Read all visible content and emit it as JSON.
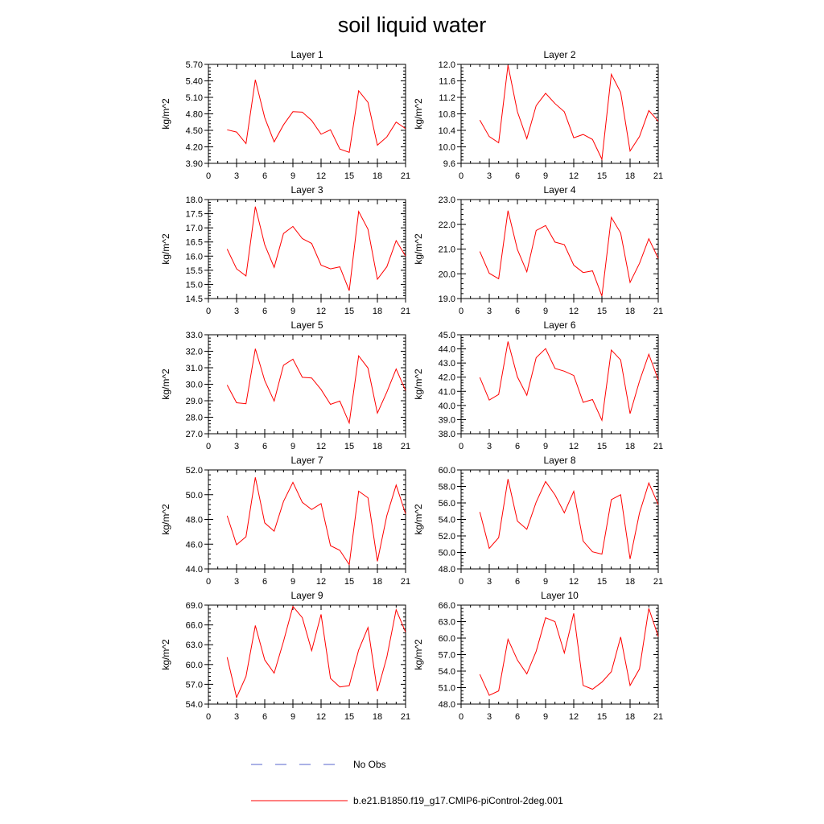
{
  "page": {
    "title": "soil liquid water"
  },
  "chart_data": [
    {
      "type": "line",
      "title": "Layer 1",
      "ylabel": "kg/m^2",
      "xlim": [
        0,
        21
      ],
      "xticks": [
        "0",
        "3",
        "6",
        "9",
        "12",
        "15",
        "18",
        "21"
      ],
      "ylim": [
        3.9,
        5.7
      ],
      "yticks": [
        "3.90",
        "4.20",
        "4.50",
        "4.80",
        "5.10",
        "5.40",
        "5.70"
      ],
      "x": [
        2,
        3,
        4,
        5,
        6,
        7,
        8,
        9,
        10,
        11,
        12,
        13,
        14,
        15,
        16,
        17,
        18,
        19,
        20,
        21
      ],
      "series": [
        {
          "name": "b.e21.B1850.f19_g17.CMIP6-piControl-2deg.001",
          "color": "#ff0000",
          "values": [
            4.51,
            4.47,
            4.26,
            5.42,
            4.73,
            4.29,
            4.6,
            4.84,
            4.83,
            4.68,
            4.43,
            4.51,
            4.16,
            4.1,
            5.22,
            5.01,
            4.23,
            4.38,
            4.65,
            4.53
          ]
        }
      ]
    },
    {
      "type": "line",
      "title": "Layer 2",
      "ylabel": "kg/m^2",
      "xlim": [
        0,
        21
      ],
      "xticks": [
        "0",
        "3",
        "6",
        "9",
        "12",
        "15",
        "18",
        "21"
      ],
      "ylim": [
        9.6,
        12.0
      ],
      "yticks": [
        "9.6",
        "10.0",
        "10.4",
        "10.8",
        "11.2",
        "11.6",
        "12.0"
      ],
      "x": [
        2,
        3,
        4,
        5,
        6,
        7,
        8,
        9,
        10,
        11,
        12,
        13,
        14,
        15,
        16,
        17,
        18,
        19,
        20,
        21
      ],
      "series": [
        {
          "name": "b.e21.B1850.f19_g17.CMIP6-piControl-2deg.001",
          "color": "#ff0000",
          "values": [
            10.65,
            10.25,
            10.1,
            11.98,
            10.85,
            10.2,
            11.0,
            11.3,
            11.05,
            10.85,
            10.22,
            10.3,
            10.18,
            9.7,
            11.76,
            11.32,
            9.9,
            10.25,
            10.88,
            10.62
          ]
        }
      ]
    },
    {
      "type": "line",
      "title": "Layer 3",
      "ylabel": "kg/m^2",
      "xlim": [
        0,
        21
      ],
      "xticks": [
        "0",
        "3",
        "6",
        "9",
        "12",
        "15",
        "18",
        "21"
      ],
      "ylim": [
        14.5,
        18.0
      ],
      "yticks": [
        "14.5",
        "15.0",
        "15.5",
        "16.0",
        "16.5",
        "17.0",
        "17.5",
        "18.0"
      ],
      "x": [
        2,
        3,
        4,
        5,
        6,
        7,
        8,
        9,
        10,
        11,
        12,
        13,
        14,
        15,
        16,
        17,
        18,
        19,
        20,
        21
      ],
      "series": [
        {
          "name": "b.e21.B1850.f19_g17.CMIP6-piControl-2deg.001",
          "color": "#ff0000",
          "values": [
            16.25,
            15.55,
            15.3,
            17.75,
            16.4,
            15.6,
            16.8,
            17.05,
            16.62,
            16.45,
            15.68,
            15.55,
            15.62,
            14.78,
            17.58,
            16.95,
            15.18,
            15.62,
            16.55,
            16.0
          ]
        }
      ]
    },
    {
      "type": "line",
      "title": "Layer 4",
      "ylabel": "kg/m^2",
      "xlim": [
        0,
        21
      ],
      "xticks": [
        "0",
        "3",
        "6",
        "9",
        "12",
        "15",
        "18",
        "21"
      ],
      "ylim": [
        19.0,
        23.0
      ],
      "yticks": [
        "19.0",
        "20.0",
        "21.0",
        "22.0",
        "23.0"
      ],
      "x": [
        2,
        3,
        4,
        5,
        6,
        7,
        8,
        9,
        10,
        11,
        12,
        13,
        14,
        15,
        16,
        17,
        18,
        19,
        20,
        21
      ],
      "series": [
        {
          "name": "b.e21.B1850.f19_g17.CMIP6-piControl-2deg.001",
          "color": "#ff0000",
          "values": [
            20.9,
            20.02,
            19.8,
            22.55,
            20.98,
            20.08,
            21.75,
            21.95,
            21.28,
            21.18,
            20.35,
            20.05,
            20.12,
            19.1,
            22.28,
            21.65,
            19.65,
            20.42,
            21.42,
            20.62
          ]
        }
      ]
    },
    {
      "type": "line",
      "title": "Layer 5",
      "ylabel": "kg/m^2",
      "xlim": [
        0,
        21
      ],
      "xticks": [
        "0",
        "3",
        "6",
        "9",
        "12",
        "15",
        "18",
        "21"
      ],
      "ylim": [
        27.0,
        33.0
      ],
      "yticks": [
        "27.0",
        "28.0",
        "29.0",
        "30.0",
        "31.0",
        "32.0",
        "33.0"
      ],
      "x": [
        2,
        3,
        4,
        5,
        6,
        7,
        8,
        9,
        10,
        11,
        12,
        13,
        14,
        15,
        16,
        17,
        18,
        19,
        20,
        21
      ],
      "series": [
        {
          "name": "b.e21.B1850.f19_g17.CMIP6-piControl-2deg.001",
          "color": "#ff0000",
          "values": [
            29.95,
            28.88,
            28.82,
            32.15,
            30.22,
            28.98,
            31.15,
            31.52,
            30.42,
            30.38,
            29.68,
            28.78,
            28.98,
            27.65,
            31.72,
            30.98,
            28.25,
            29.52,
            30.92,
            29.62
          ]
        }
      ]
    },
    {
      "type": "line",
      "title": "Layer 6",
      "ylabel": "kg/m^2",
      "xlim": [
        0,
        21
      ],
      "xticks": [
        "0",
        "3",
        "6",
        "9",
        "12",
        "15",
        "18",
        "21"
      ],
      "ylim": [
        38.0,
        45.0
      ],
      "yticks": [
        "38.0",
        "39.0",
        "40.0",
        "41.0",
        "42.0",
        "43.0",
        "44.0",
        "45.0"
      ],
      "x": [
        2,
        3,
        4,
        5,
        6,
        7,
        8,
        9,
        10,
        11,
        12,
        13,
        14,
        15,
        16,
        17,
        18,
        19,
        20,
        21
      ],
      "series": [
        {
          "name": "b.e21.B1850.f19_g17.CMIP6-piControl-2deg.001",
          "color": "#ff0000",
          "values": [
            41.98,
            40.38,
            40.78,
            44.52,
            42.02,
            40.72,
            43.38,
            44.02,
            42.62,
            42.42,
            42.12,
            40.22,
            40.42,
            38.95,
            43.92,
            43.22,
            39.42,
            41.72,
            43.62,
            41.82
          ]
        }
      ]
    },
    {
      "type": "line",
      "title": "Layer 7",
      "ylabel": "kg/m^2",
      "xlim": [
        0,
        21
      ],
      "xticks": [
        "0",
        "3",
        "6",
        "9",
        "12",
        "15",
        "18",
        "21"
      ],
      "ylim": [
        44.0,
        52.0
      ],
      "yticks": [
        "44.0",
        "46.0",
        "48.0",
        "50.0",
        "52.0"
      ],
      "x": [
        2,
        3,
        4,
        5,
        6,
        7,
        8,
        9,
        10,
        11,
        12,
        13,
        14,
        15,
        16,
        17,
        18,
        19,
        20,
        21
      ],
      "series": [
        {
          "name": "b.e21.B1850.f19_g17.CMIP6-piControl-2deg.001",
          "color": "#ff0000",
          "values": [
            48.3,
            45.95,
            46.6,
            51.4,
            47.72,
            47.05,
            49.45,
            51.0,
            49.38,
            48.8,
            49.28,
            45.88,
            45.5,
            44.35,
            50.28,
            49.75,
            44.62,
            48.3,
            50.78,
            48.45
          ]
        }
      ]
    },
    {
      "type": "line",
      "title": "Layer 8",
      "ylabel": "kg/m^2",
      "xlim": [
        0,
        21
      ],
      "xticks": [
        "0",
        "3",
        "6",
        "9",
        "12",
        "15",
        "18",
        "21"
      ],
      "ylim": [
        48.0,
        60.0
      ],
      "yticks": [
        "48.0",
        "50.0",
        "52.0",
        "54.0",
        "56.0",
        "58.0",
        "60.0"
      ],
      "x": [
        2,
        3,
        4,
        5,
        6,
        7,
        8,
        9,
        10,
        11,
        12,
        13,
        14,
        15,
        16,
        17,
        18,
        19,
        20,
        21
      ],
      "series": [
        {
          "name": "b.e21.B1850.f19_g17.CMIP6-piControl-2deg.001",
          "color": "#ff0000",
          "values": [
            54.9,
            50.5,
            51.8,
            58.9,
            53.8,
            52.8,
            56.1,
            58.6,
            56.98,
            54.8,
            57.4,
            51.38,
            50.08,
            49.8,
            56.4,
            57.0,
            49.2,
            54.78,
            58.42,
            55.8
          ]
        }
      ]
    },
    {
      "type": "line",
      "title": "Layer 9",
      "ylabel": "kg/m^2",
      "xlim": [
        0,
        21
      ],
      "xticks": [
        "0",
        "3",
        "6",
        "9",
        "12",
        "15",
        "18",
        "21"
      ],
      "ylim": [
        54.0,
        69.0
      ],
      "yticks": [
        "54.0",
        "57.0",
        "60.0",
        "63.0",
        "66.0",
        "69.0"
      ],
      "x": [
        2,
        3,
        4,
        5,
        6,
        7,
        8,
        9,
        10,
        11,
        12,
        13,
        14,
        15,
        16,
        17,
        18,
        19,
        20,
        21
      ],
      "series": [
        {
          "name": "b.e21.B1850.f19_g17.CMIP6-piControl-2deg.001",
          "color": "#ff0000",
          "values": [
            61.1,
            55.0,
            58.2,
            65.9,
            60.7,
            58.7,
            63.5,
            68.8,
            67.1,
            62.1,
            67.6,
            57.9,
            56.6,
            56.8,
            62.2,
            65.6,
            55.95,
            61.1,
            68.3,
            64.9
          ]
        }
      ]
    },
    {
      "type": "line",
      "title": "Layer 10",
      "ylabel": "kg/m^2",
      "xlim": [
        0,
        21
      ],
      "xticks": [
        "0",
        "3",
        "6",
        "9",
        "12",
        "15",
        "18",
        "21"
      ],
      "ylim": [
        48.0,
        66.0
      ],
      "yticks": [
        "48.0",
        "51.0",
        "54.0",
        "57.0",
        "60.0",
        "63.0",
        "66.0"
      ],
      "x": [
        2,
        3,
        4,
        5,
        6,
        7,
        8,
        9,
        10,
        11,
        12,
        13,
        14,
        15,
        16,
        17,
        18,
        19,
        20,
        21
      ],
      "series": [
        {
          "name": "b.e21.B1850.f19_g17.CMIP6-piControl-2deg.001",
          "color": "#ff0000",
          "values": [
            53.4,
            49.6,
            50.4,
            59.8,
            56.0,
            53.5,
            57.6,
            63.7,
            63.0,
            57.3,
            64.5,
            51.4,
            50.7,
            52.0,
            53.9,
            60.2,
            51.4,
            54.4,
            65.4,
            60.3
          ]
        }
      ]
    }
  ],
  "legend": {
    "items": [
      {
        "label": "No Obs",
        "style": "dashed",
        "color": "#5566cc"
      },
      {
        "label": "b.e21.B1850.f19_g17.CMIP6-piControl-2deg.001",
        "style": "solid",
        "color": "#ff0000"
      }
    ]
  }
}
